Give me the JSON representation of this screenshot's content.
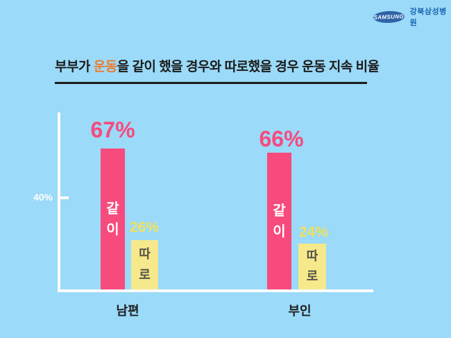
{
  "page": {
    "background_color": "#9BDAF8"
  },
  "logo": {
    "brand": "SAMSUNG",
    "hospital": "강북삼성병원",
    "ellipse_color": "#2E63A8",
    "hospital_text_color": "#1A64B4"
  },
  "title": {
    "pre": "부부가 ",
    "highlight": "운동",
    "post": "을 같이 했을 경우와 따로했을 경우 운동 지속 비율",
    "highlight_color": "#ED7D31",
    "text_color": "#1C1C1C"
  },
  "axis": {
    "tick_label": "40%",
    "line_color": "#FFFFFF"
  },
  "chart": {
    "groups": [
      {
        "category": "남편",
        "together": {
          "value": "67%",
          "label": "같이"
        },
        "apart": {
          "value": "26%",
          "label": "따로"
        }
      },
      {
        "category": "부인",
        "together": {
          "value": "66%",
          "label": "같이"
        },
        "apart": {
          "value": "24%",
          "label": "따로"
        }
      }
    ]
  },
  "chart_data": {
    "type": "bar",
    "title": "부부가 운동을 같이 했을 경우와 따로했을 경우 운동 지속 비율",
    "categories": [
      "남편",
      "부인"
    ],
    "series": [
      {
        "name": "같이",
        "values": [
          67,
          66
        ],
        "color": "#F74A7D",
        "label_position": "above-bar",
        "in_bar_text_color": "#FFFFFF"
      },
      {
        "name": "따로",
        "values": [
          26,
          24
        ],
        "color": "#F6E98C",
        "label_position": "above-bar",
        "label_color": "#EFE15F",
        "in_bar_text_color": "#56544A"
      }
    ],
    "unit": "%",
    "xlabel": "",
    "ylabel": "",
    "ylim": [
      0,
      70
    ],
    "yticks": [
      40
    ],
    "ytick_labels": [
      "40%"
    ],
    "grid": false,
    "legend_position": "none (series names written vertically inside bars)"
  }
}
